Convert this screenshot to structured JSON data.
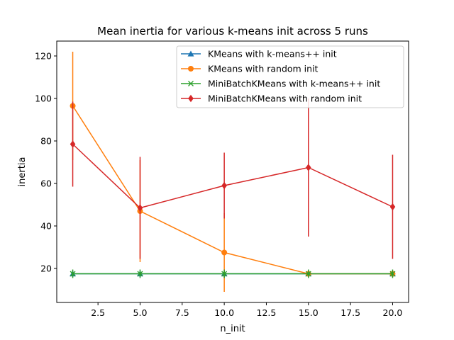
{
  "chart_data": {
    "type": "line",
    "title": "Mean inertia for various k-means init across 5 runs",
    "xlabel": "n_init",
    "ylabel": "inertia",
    "xlim": [
      0.05,
      20.95
    ],
    "ylim": [
      4.0,
      127.0
    ],
    "xticks": [
      2.5,
      5.0,
      7.5,
      10.0,
      12.5,
      15.0,
      17.5,
      20.0
    ],
    "xtick_labels": [
      "2.5",
      "5.0",
      "7.5",
      "10.0",
      "12.5",
      "15.0",
      "17.5",
      "20.0"
    ],
    "yticks": [
      20,
      40,
      60,
      80,
      100,
      120
    ],
    "ytick_labels": [
      "20",
      "40",
      "60",
      "80",
      "100",
      "120"
    ],
    "grid": false,
    "legend_position": "upper right",
    "x": [
      1,
      5,
      10,
      15,
      20
    ],
    "series": [
      {
        "name": "KMeans with k-means++ init",
        "color": "#1f77b4",
        "marker": "triangle",
        "values": [
          17.5,
          17.5,
          17.5,
          17.5,
          17.5
        ],
        "errors": [
          1.5,
          1.5,
          1.5,
          1.5,
          1.5
        ]
      },
      {
        "name": "KMeans with random init",
        "color": "#ff7f0e",
        "marker": "circle",
        "values": [
          96.5,
          47.0,
          27.5,
          17.5,
          17.5
        ],
        "errors": [
          25.5,
          24.0,
          18.5,
          1.0,
          1.0
        ]
      },
      {
        "name": "MiniBatchKMeans with k-means++ init",
        "color": "#2ca02c",
        "marker": "x",
        "values": [
          17.5,
          17.5,
          17.5,
          17.5,
          17.5
        ],
        "errors": [
          2.0,
          2.0,
          2.0,
          2.0,
          2.0
        ]
      },
      {
        "name": "MiniBatchKMeans with random init",
        "color": "#d62728",
        "marker": "diamond",
        "values": [
          78.5,
          48.5,
          59.0,
          67.5,
          49.0
        ],
        "errors": [
          20.0,
          24.0,
          15.5,
          32.5,
          24.5
        ]
      }
    ]
  }
}
